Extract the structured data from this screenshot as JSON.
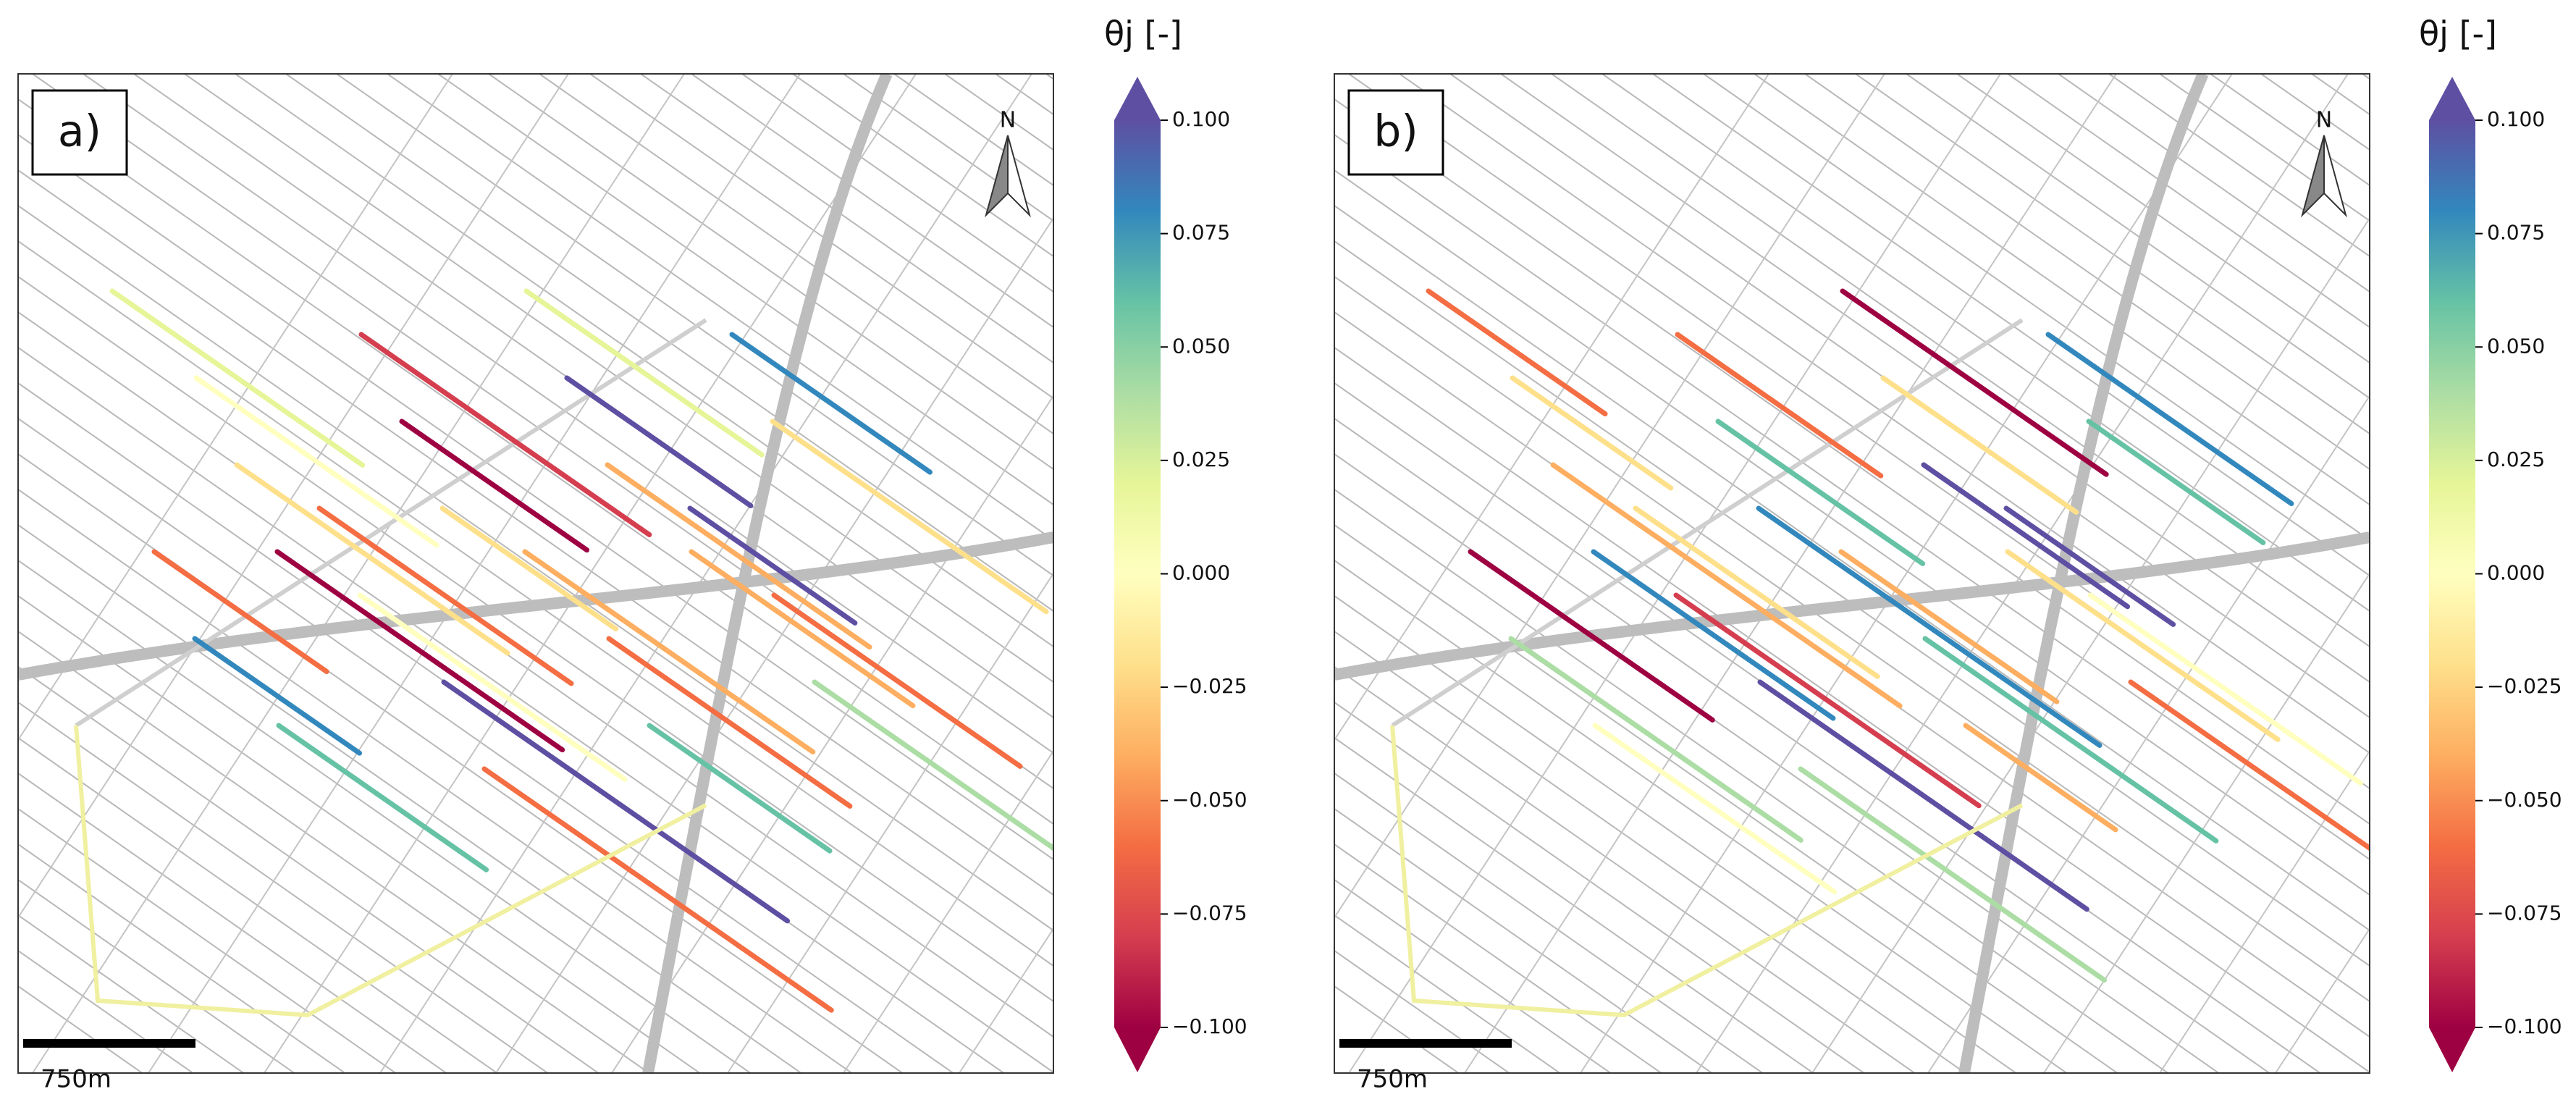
{
  "panels": [
    {
      "label": "a)",
      "north": "N",
      "scale_bar": "750m",
      "colorbar": {
        "title": "θj [-]",
        "lim": [
          -0.1,
          0.1
        ],
        "colors": [
          "#9e0142",
          "#d53e4f",
          "#f46d43",
          "#fdae61",
          "#fee08b",
          "#ffffbf",
          "#e6f598",
          "#abdda4",
          "#66c2a5",
          "#3288bd",
          "#5e4fa2"
        ],
        "ticks": [
          {
            "value": 0.1,
            "label": "0.100"
          },
          {
            "value": 0.075,
            "label": "0.075"
          },
          {
            "value": 0.05,
            "label": "0.050"
          },
          {
            "value": 0.025,
            "label": "0.025"
          },
          {
            "value": 0,
            "label": "0.000"
          },
          {
            "value": -0.025,
            "label": "−0.025"
          },
          {
            "value": -0.05,
            "label": "−0.050"
          },
          {
            "value": -0.075,
            "label": "−0.075"
          },
          {
            "value": -0.1,
            "label": "−0.100"
          }
        ]
      }
    },
    {
      "label": "b)",
      "north": "N",
      "scale_bar": "750m",
      "colorbar": {
        "title": "θj [-]",
        "lim": [
          -0.1,
          0.1
        ],
        "colors": [
          "#9e0142",
          "#d53e4f",
          "#f46d43",
          "#fdae61",
          "#fee08b",
          "#ffffbf",
          "#e6f598",
          "#abdda4",
          "#66c2a5",
          "#3288bd",
          "#5e4fa2"
        ],
        "ticks": [
          {
            "value": 0.1,
            "label": "0.100"
          },
          {
            "value": 0.075,
            "label": "0.075"
          },
          {
            "value": 0.05,
            "label": "0.050"
          },
          {
            "value": 0.025,
            "label": "0.025"
          },
          {
            "value": 0,
            "label": "0.000"
          },
          {
            "value": -0.025,
            "label": "−0.025"
          },
          {
            "value": -0.05,
            "label": "−0.050"
          },
          {
            "value": -0.075,
            "label": "−0.075"
          },
          {
            "value": -0.1,
            "label": "−0.100"
          }
        ]
      }
    }
  ]
}
